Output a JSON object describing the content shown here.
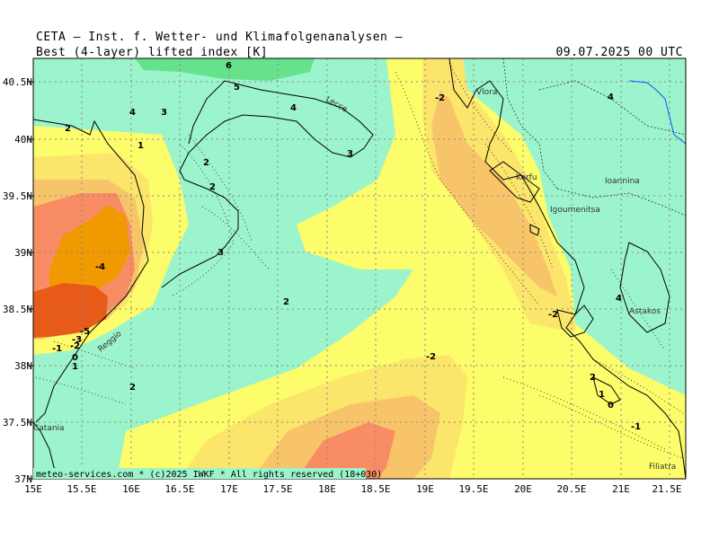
{
  "header": {
    "institute": "CETA — Inst. f. Wetter- und Klimafolgenanalysen —",
    "variable": "Best (4-layer) lifted index [K]",
    "valid_time": "09.07.2025 00 UTC"
  },
  "footer": {
    "copyright": "meteo-services.com * (c)2025 IWKF * All rights reserved (18+030)"
  },
  "axes": {
    "lat_ticks": [
      "40.5N",
      "40N",
      "39.5N",
      "39N",
      "38.5N",
      "38N",
      "37.5N",
      "37N"
    ],
    "lon_ticks": [
      "15E",
      "15.5E",
      "16E",
      "16.5E",
      "17E",
      "17.5E",
      "18E",
      "18.5E",
      "19E",
      "19.5E",
      "20E",
      "20.5E",
      "21E",
      "21.5E"
    ]
  },
  "colors": {
    "green_dark": "#66e28c",
    "green": "#9cf4cc",
    "yellow": "#fdfc6a",
    "yellow_light": "#fbe56a",
    "orange_light": "#f8c46a",
    "orange": "#f88c64",
    "red": "#e85a18",
    "orange_core": "#f19900",
    "grid": "#888888",
    "coast": "#000000"
  },
  "places": [
    "Lecce",
    "Vlora",
    "Korfu",
    "Igoumenitsa",
    "Ioannina",
    "Astakos",
    "Reggio",
    "Catania",
    "Filiatra"
  ],
  "contour_labels": [
    "6",
    "5",
    "4",
    "3",
    "2",
    "1",
    "2",
    "4",
    "3",
    "2",
    "3",
    "4",
    "-2",
    "4",
    "2",
    "-4",
    "-5",
    "-3",
    "-2",
    "-1",
    "0",
    "1",
    "2",
    "-2",
    "-2",
    "2",
    "1",
    "0",
    "-1"
  ]
}
